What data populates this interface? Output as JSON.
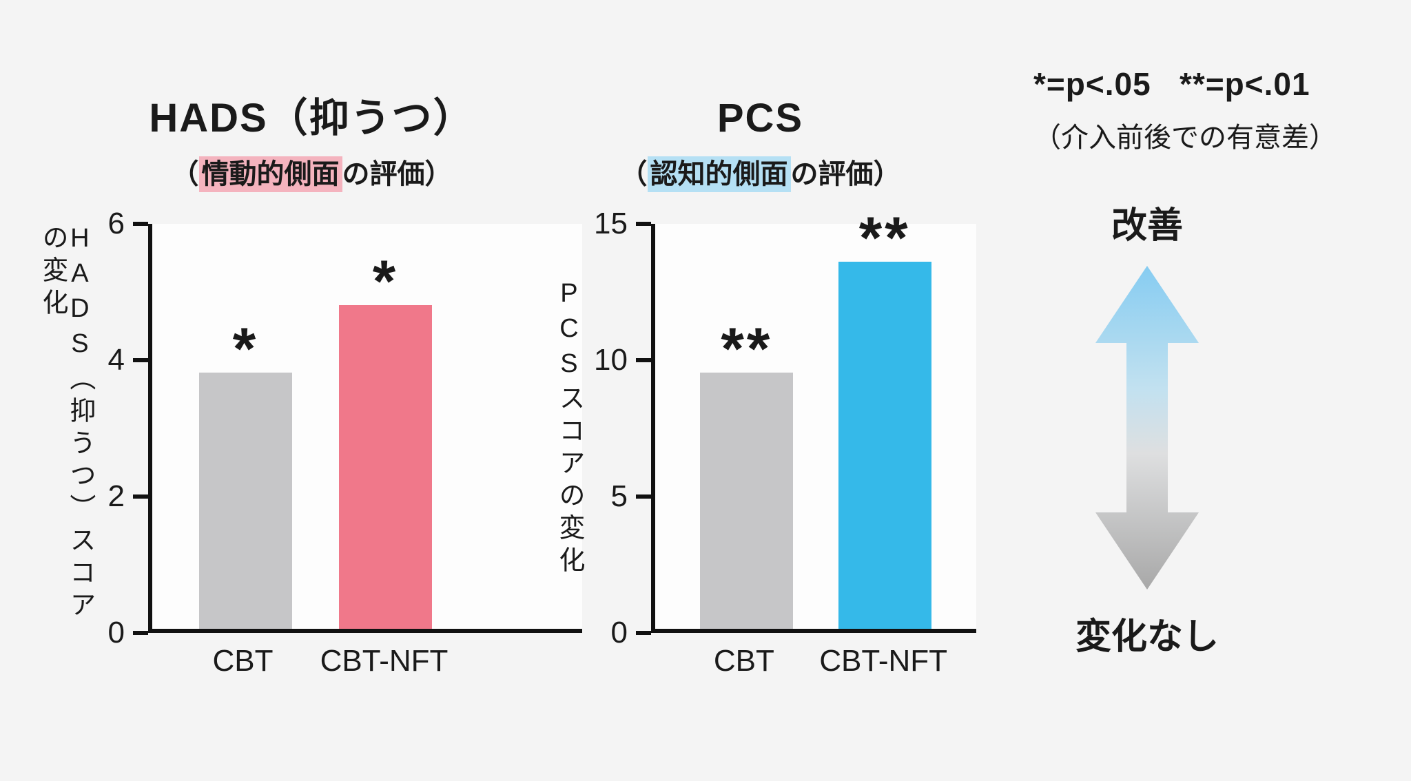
{
  "page": {
    "background": "#f4f4f4",
    "plot_background": "#fdfdfd",
    "axis_color": "#111111"
  },
  "chart_data": [
    {
      "type": "bar",
      "title": "HADS（抑うつ）",
      "subtitle_prefix": "（",
      "subtitle_highlight": "情動的側面",
      "subtitle_suffix": "の評価）",
      "highlight_color": "#f4b3be",
      "y_axis_label": "HADS（抑うつ）スコアの変化",
      "xlabel": "",
      "ylim": [
        0,
        6
      ],
      "yticks": [
        0,
        2,
        4,
        6
      ],
      "categories": [
        "CBT",
        "CBT-NFT"
      ],
      "values": [
        3.8,
        4.8
      ],
      "bar_colors": [
        "#c6c6c8",
        "#f0788a"
      ],
      "annotations": [
        "*",
        "*"
      ],
      "grid": false,
      "legend_position": "none"
    },
    {
      "type": "bar",
      "title": "PCS",
      "subtitle_prefix": "（",
      "subtitle_highlight": "認知的側面",
      "subtitle_suffix": "の評価）",
      "highlight_color": "#b5e0f4",
      "y_axis_label": "PCSスコアの変化",
      "xlabel": "",
      "ylim": [
        0,
        15
      ],
      "yticks": [
        0,
        5,
        10,
        15
      ],
      "categories": [
        "CBT",
        "CBT-NFT"
      ],
      "values": [
        9.5,
        13.6
      ],
      "bar_colors": [
        "#c6c6c8",
        "#35b9e9"
      ],
      "annotations": [
        "**",
        "**"
      ],
      "grid": false,
      "legend_position": "none"
    }
  ],
  "legend": {
    "significance_note": "*=p<.05   **=p<.01",
    "significance_sub": "（介入前後での有意差）"
  },
  "arrow": {
    "top_label": "改善",
    "bottom_label": "変化なし",
    "gradient": [
      "#86ccf1",
      "#c2e1f0",
      "#dedfe0",
      "#a8a8a8"
    ]
  }
}
